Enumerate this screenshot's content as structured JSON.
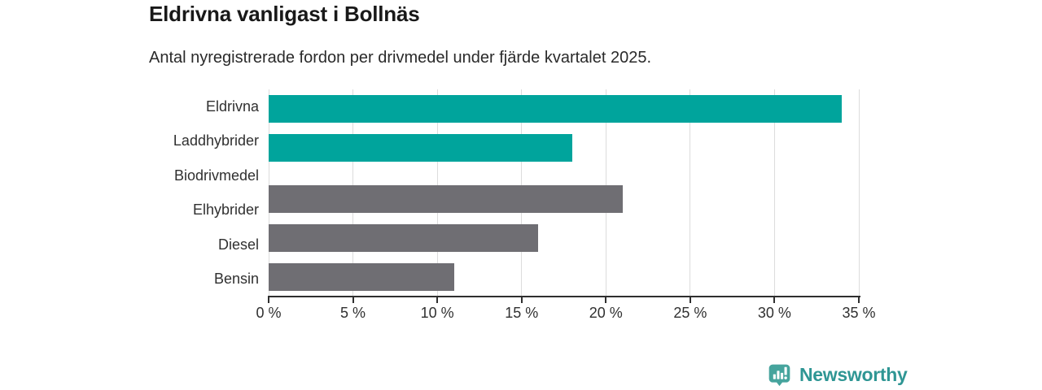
{
  "title": "Eldrivna vanligast i Bollnäs",
  "subtitle": "Antal nyregistrerade fordon per drivmedel under fjärde kvartalet 2025.",
  "chart_data": {
    "type": "bar",
    "orientation": "horizontal",
    "title": "Eldrivna vanligast i Bollnäs",
    "subtitle": "Antal nyregistrerade fordon per drivmedel under fjärde kvartalet 2025.",
    "categories": [
      "Eldrivna",
      "Laddhybrider",
      "Biodrivmedel",
      "Elhybrider",
      "Diesel",
      "Bensin"
    ],
    "values": [
      34,
      18,
      0,
      21,
      16,
      11
    ],
    "unit": "%",
    "xlim": [
      0,
      35
    ],
    "grid": true,
    "x_ticks": [
      {
        "value": 0,
        "label": "0 %"
      },
      {
        "value": 5,
        "label": "5 %"
      },
      {
        "value": 10,
        "label": "10 %"
      },
      {
        "value": 15,
        "label": "15 %"
      },
      {
        "value": 20,
        "label": "20 %"
      },
      {
        "value": 25,
        "label": "25 %"
      },
      {
        "value": 30,
        "label": "30 %"
      },
      {
        "value": 35,
        "label": "35 %"
      }
    ],
    "bar_colors": [
      "#00a49c",
      "#00a49c",
      "#6f6e73",
      "#6f6e73",
      "#6f6e73",
      "#6f6e73"
    ],
    "highlight_color": "#00a49c",
    "default_color": "#6f6e73"
  },
  "branding": {
    "logo_text": "Newsworthy",
    "logo_icon": "newsworthy-chart-bubble-icon",
    "icon_color": "#46a49d",
    "text_color": "#2f9694"
  }
}
